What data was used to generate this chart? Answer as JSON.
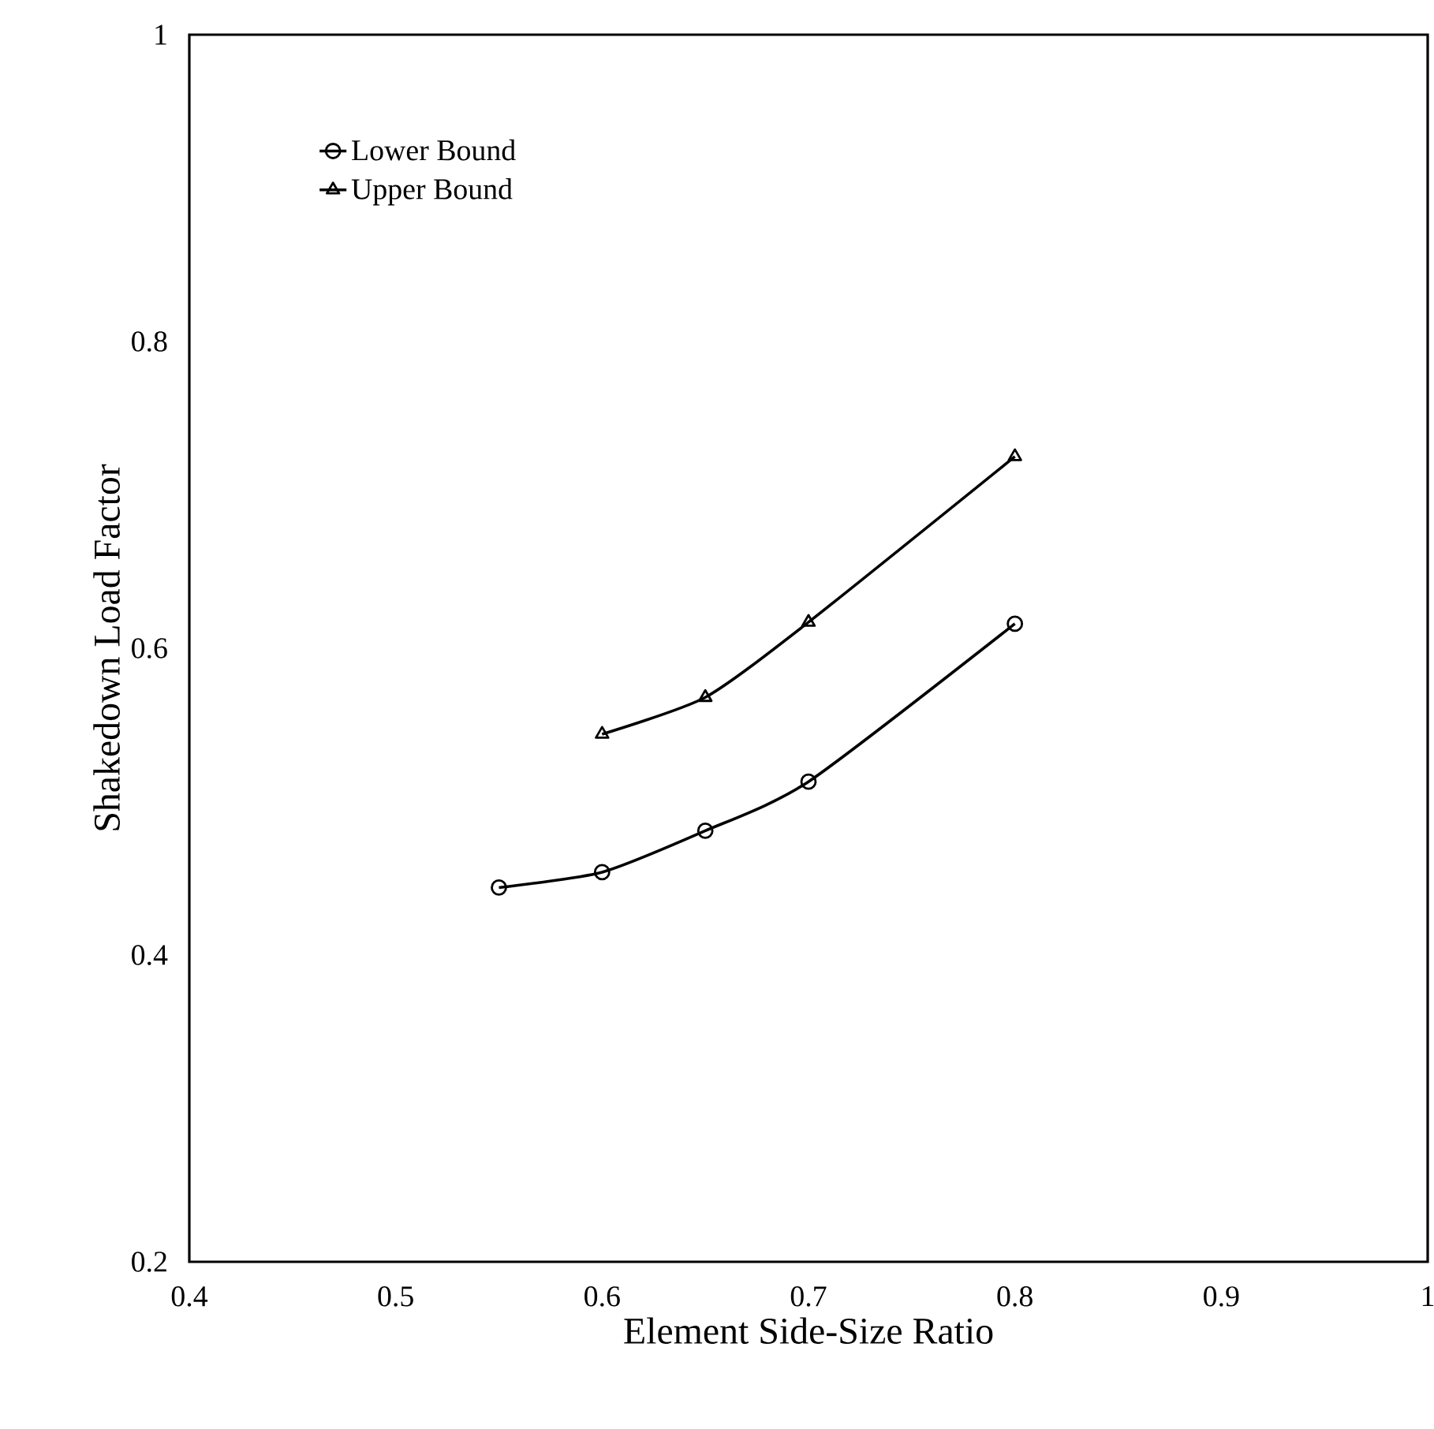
{
  "chart_data": {
    "type": "line",
    "xlabel": "Element Side-Size Ratio",
    "ylabel": "Shakedown Load Factor",
    "xlim": [
      0.4,
      1
    ],
    "ylim": [
      0.2,
      1
    ],
    "xticks": [
      0.4,
      0.5,
      0.6,
      0.7,
      0.8,
      0.9,
      1
    ],
    "yticks": [
      0.2,
      0.4,
      0.6,
      0.8,
      1
    ],
    "grid": false,
    "legend": "top left",
    "line_style": "solid",
    "series": [
      {
        "name": "Lower Bound",
        "color": "#000000",
        "marker": "circle",
        "x": [
          0.55,
          0.6,
          0.65,
          0.7,
          0.8
        ],
        "values": [
          0.444,
          0.454,
          0.481,
          0.513,
          0.616
        ]
      },
      {
        "name": "Upper Bound",
        "color": "#000000",
        "marker": "triangle",
        "x": [
          0.6,
          0.65,
          0.7,
          0.8
        ],
        "values": [
          0.544,
          0.568,
          0.617,
          0.725
        ]
      }
    ]
  }
}
